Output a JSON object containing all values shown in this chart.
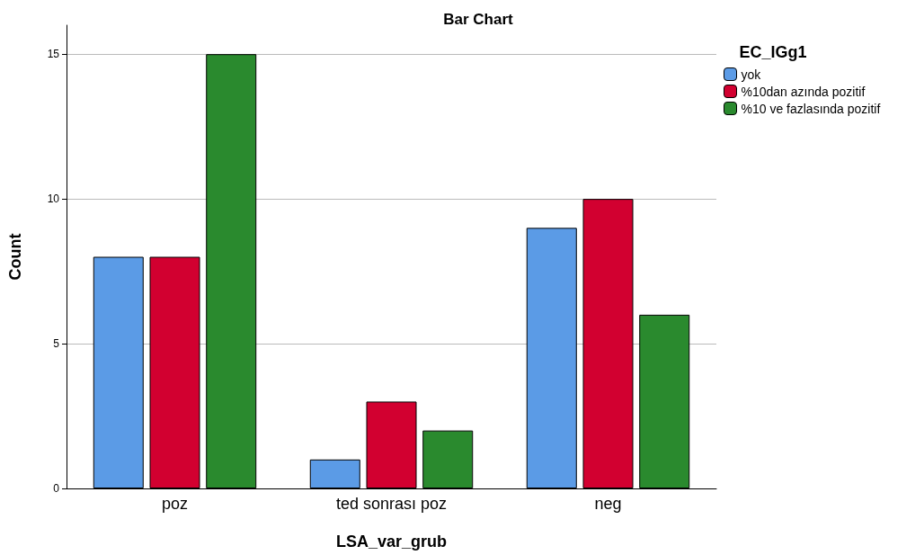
{
  "chart_data": {
    "type": "bar",
    "title": "Bar Chart",
    "xlabel": "LSA_var_grub",
    "ylabel": "Count",
    "legend_title": "EC_IGg1",
    "categories": [
      "poz",
      "ted sonrası poz",
      "neg"
    ],
    "series": [
      {
        "name": "yok",
        "color": "#5b9be6",
        "values": [
          8,
          1,
          9
        ]
      },
      {
        "name": "%10dan azında pozitif",
        "color": "#d20030",
        "values": [
          8,
          3,
          10
        ]
      },
      {
        "name": "%10 ve fazlasında pozitif",
        "color": "#2a8a2e",
        "values": [
          15,
          2,
          6
        ]
      }
    ],
    "ylim": [
      0,
      16
    ],
    "yticks": [
      0,
      5,
      10,
      15
    ],
    "grid": "y",
    "legend": "top right"
  }
}
